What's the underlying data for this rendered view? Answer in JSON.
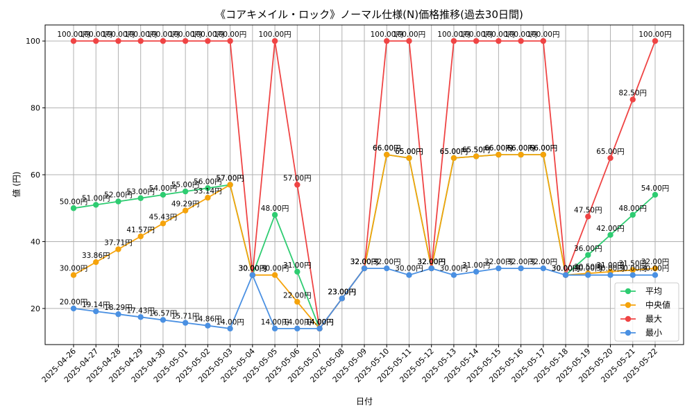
{
  "chart_data": {
    "type": "line",
    "title": "《コアキメイル・ロック》ノーマル仕様(N)価格推移(過去30日間)",
    "xlabel": "日付",
    "ylabel": "値 (円)",
    "ylim": [
      9.2,
      104.8
    ],
    "yticks": [
      20,
      40,
      60,
      80,
      100
    ],
    "grid": true,
    "legend_position": "lower-right",
    "value_suffix": "円",
    "x": [
      "2025-04-26",
      "2025-04-27",
      "2025-04-28",
      "2025-04-29",
      "2025-04-30",
      "2025-05-01",
      "2025-05-02",
      "2025-05-03",
      "2025-05-04",
      "2025-05-05",
      "2025-05-06",
      "2025-05-07",
      "2025-05-08",
      "2025-05-09",
      "2025-05-10",
      "2025-05-11",
      "2025-05-12",
      "2025-05-13",
      "2025-05-14",
      "2025-05-15",
      "2025-05-16",
      "2025-05-17",
      "2025-05-18",
      "2025-05-19",
      "2025-05-20",
      "2025-05-21",
      "2025-05-22"
    ],
    "series": [
      {
        "name": "平均",
        "color": "#2ecc71",
        "values": [
          50.0,
          51.0,
          52.0,
          53.0,
          54.0,
          55.0,
          56.0,
          57.0,
          30.0,
          48.0,
          31.0,
          14.0,
          23.0,
          32.0,
          66.0,
          65.0,
          32.0,
          65.0,
          65.5,
          66.0,
          66.0,
          66.0,
          30.0,
          36.0,
          42.0,
          48.0,
          54.0
        ]
      },
      {
        "name": "中央値",
        "color": "#f5a30b",
        "values": [
          30.0,
          33.86,
          37.71,
          41.57,
          45.43,
          49.29,
          53.14,
          57.0,
          30.0,
          30.0,
          22.0,
          14.0,
          23.0,
          32.0,
          66.0,
          65.0,
          32.0,
          65.0,
          65.5,
          66.0,
          66.0,
          66.0,
          30.0,
          30.5,
          31.0,
          31.5,
          32.0
        ]
      },
      {
        "name": "最大",
        "color": "#ef4444",
        "values": [
          100.0,
          100.0,
          100.0,
          100.0,
          100.0,
          100.0,
          100.0,
          100.0,
          30.0,
          100.0,
          57.0,
          14.0,
          23.0,
          32.0,
          100.0,
          100.0,
          32.0,
          100.0,
          100.0,
          100.0,
          100.0,
          100.0,
          30.0,
          47.5,
          65.0,
          82.5,
          100.0
        ]
      },
      {
        "name": "最小",
        "color": "#4a90e2",
        "values": [
          20.0,
          19.14,
          18.29,
          17.43,
          16.57,
          15.71,
          14.86,
          14.0,
          30.0,
          14.0,
          14.0,
          14.0,
          23.0,
          32.0,
          32.0,
          30.0,
          32.0,
          30.0,
          31.0,
          32.0,
          32.0,
          32.0,
          30.0,
          30.0,
          30.0,
          30.0,
          30.0
        ]
      }
    ]
  }
}
